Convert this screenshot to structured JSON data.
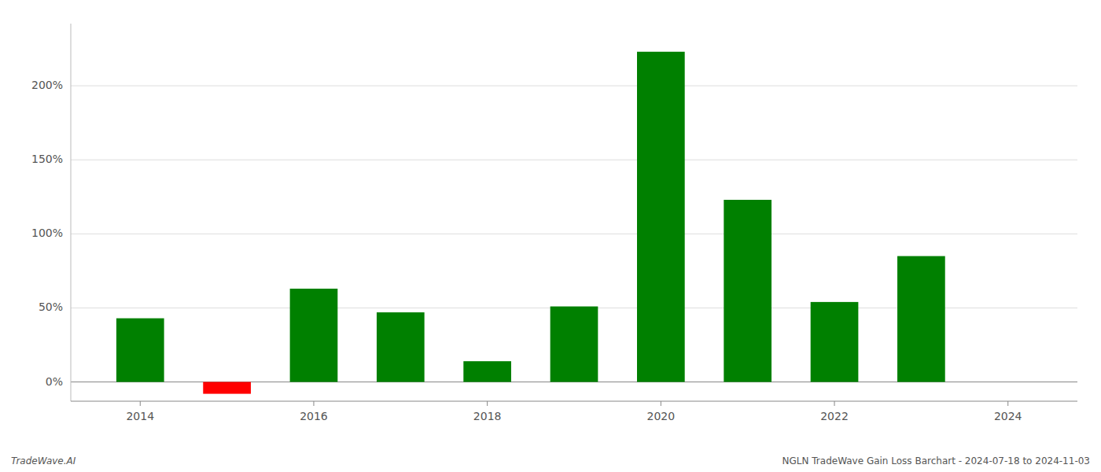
{
  "chart_data": {
    "type": "bar",
    "x": [
      2014,
      2015,
      2016,
      2017,
      2018,
      2019,
      2020,
      2021,
      2022,
      2023
    ],
    "values": [
      0.43,
      -0.08,
      0.63,
      0.47,
      0.14,
      0.51,
      2.23,
      1.23,
      0.54,
      0.85
    ],
    "colors": [
      "#008000",
      "#ff0000",
      "#008000",
      "#008000",
      "#008000",
      "#008000",
      "#008000",
      "#008000",
      "#008000",
      "#008000"
    ],
    "xlim": [
      2013.2,
      2024.8
    ],
    "xticks": [
      2014,
      2016,
      2018,
      2020,
      2022,
      2024
    ],
    "ylim": [
      -0.13,
      2.42
    ],
    "yticks": [
      {
        "value": 0.0,
        "label": "0%"
      },
      {
        "value": 0.5,
        "label": "50%"
      },
      {
        "value": 1.0,
        "label": "100%"
      },
      {
        "value": 1.5,
        "label": "150%"
      },
      {
        "value": 2.0,
        "label": "200%"
      }
    ],
    "grid": true,
    "annotations": [
      "TradeWave.AI",
      "NGLN TradeWave Gain Loss Barchart - 2024-07-18 to 2024-11-03"
    ]
  }
}
